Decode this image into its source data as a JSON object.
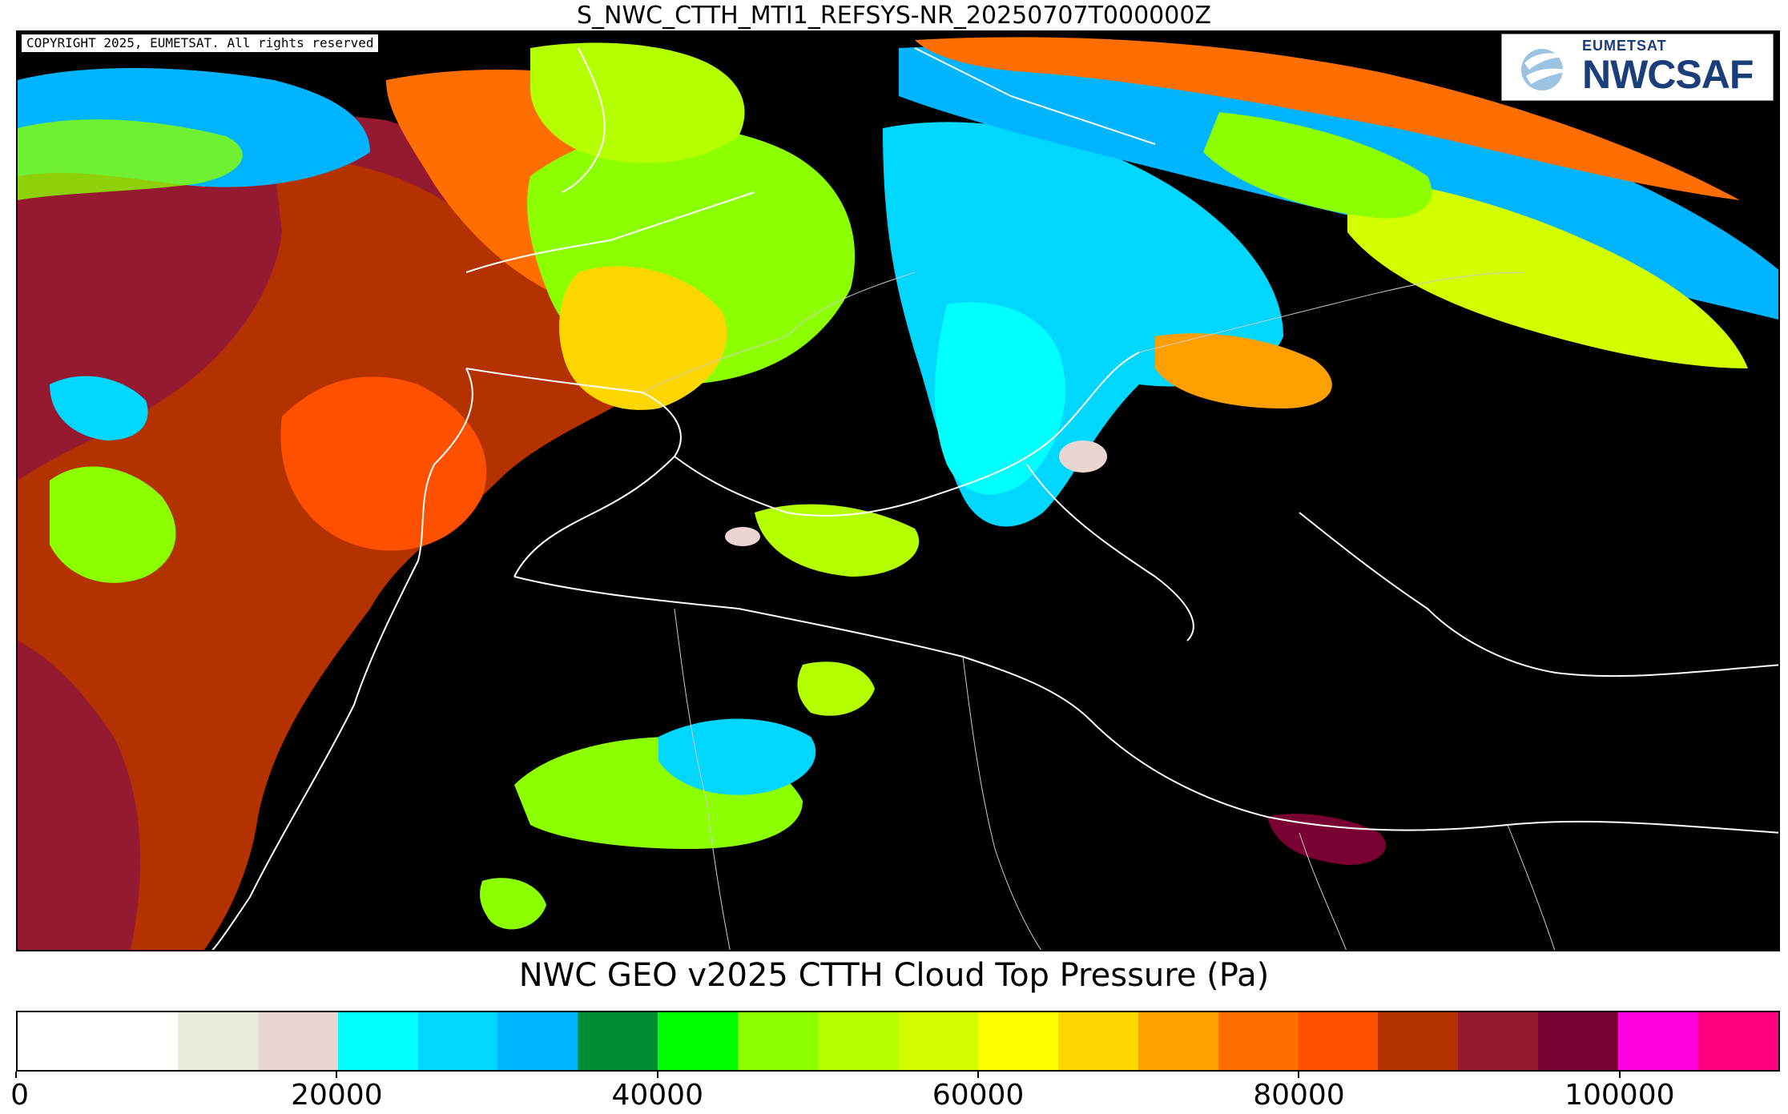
{
  "title": "S_NWC_CTTH_MTI1_REFSYS-NR_20250707T000000Z",
  "copyright": "COPYRIGHT 2025, EUMETSAT. All rights reserved",
  "logo": {
    "org": "EUMETSAT",
    "name": "NWCSAF"
  },
  "colorbar": {
    "title": "NWC GEO v2025 CTTH Cloud Top Pressure (Pa)",
    "min": 0,
    "max": 110000,
    "tick_labels": [
      "0",
      "20000",
      "40000",
      "60000",
      "80000",
      "100000"
    ],
    "bins": [
      {
        "lo": 0,
        "hi": 10000,
        "color": "#ffffff"
      },
      {
        "lo": 10000,
        "hi": 15000,
        "color": "#ebebdc"
      },
      {
        "lo": 15000,
        "hi": 20000,
        "color": "#e9d5d1"
      },
      {
        "lo": 20000,
        "hi": 25000,
        "color": "#00ffff"
      },
      {
        "lo": 25000,
        "hi": 30000,
        "color": "#00d7ff"
      },
      {
        "lo": 30000,
        "hi": 35000,
        "color": "#00b4ff"
      },
      {
        "lo": 35000,
        "hi": 40000,
        "color": "#008c32"
      },
      {
        "lo": 40000,
        "hi": 45000,
        "color": "#00ff00"
      },
      {
        "lo": 45000,
        "hi": 50000,
        "color": "#8cff00"
      },
      {
        "lo": 50000,
        "hi": 55000,
        "color": "#b4ff00"
      },
      {
        "lo": 55000,
        "hi": 60000,
        "color": "#d2ff00"
      },
      {
        "lo": 60000,
        "hi": 65000,
        "color": "#ffff00"
      },
      {
        "lo": 65000,
        "hi": 70000,
        "color": "#ffd700"
      },
      {
        "lo": 70000,
        "hi": 75000,
        "color": "#ffa000"
      },
      {
        "lo": 75000,
        "hi": 80000,
        "color": "#ff6e00"
      },
      {
        "lo": 80000,
        "hi": 85000,
        "color": "#ff5000"
      },
      {
        "lo": 85000,
        "hi": 90000,
        "color": "#b43200"
      },
      {
        "lo": 90000,
        "hi": 95000,
        "color": "#961932"
      },
      {
        "lo": 95000,
        "hi": 100000,
        "color": "#780032"
      },
      {
        "lo": 100000,
        "hi": 105000,
        "color": "#ff00e1"
      },
      {
        "lo": 105000,
        "hi": 110000,
        "color": "#ff0080"
      }
    ]
  },
  "map": {
    "background_color": "#000000",
    "coastline_color": "#ffffff"
  }
}
